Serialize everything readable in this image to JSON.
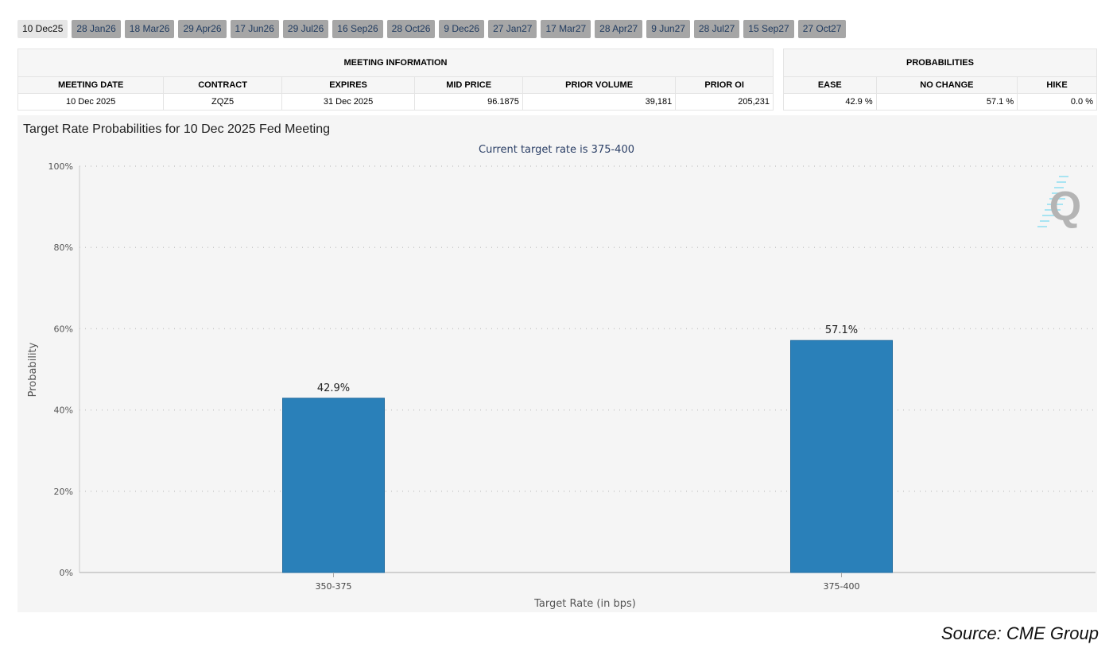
{
  "tabs": [
    "10 Dec25",
    "28 Jan26",
    "18 Mar26",
    "29 Apr26",
    "17 Jun26",
    "29 Jul26",
    "16 Sep26",
    "28 Oct26",
    "9 Dec26",
    "27 Jan27",
    "17 Mar27",
    "28 Apr27",
    "9 Jun27",
    "28 Jul27",
    "15 Sep27",
    "27 Oct27"
  ],
  "meeting_info": {
    "title": "MEETING INFORMATION",
    "headers": [
      "MEETING DATE",
      "CONTRACT",
      "EXPIRES",
      "MID PRICE",
      "PRIOR VOLUME",
      "PRIOR OI"
    ],
    "row": [
      "10 Dec 2025",
      "ZQZ5",
      "31 Dec 2025",
      "96.1875",
      "39,181",
      "205,231"
    ]
  },
  "probabilities": {
    "title": "PROBABILITIES",
    "headers": [
      "EASE",
      "NO CHANGE",
      "HIKE"
    ],
    "row": [
      "42.9 %",
      "57.1 %",
      "0.0 %"
    ]
  },
  "chart_data": {
    "type": "bar",
    "title": "Target Rate Probabilities for 10 Dec 2025 Fed Meeting",
    "subtitle": "Current target rate is 375-400",
    "categories": [
      "350-375",
      "375-400"
    ],
    "values": [
      42.9,
      57.1
    ],
    "data_labels": [
      "42.9%",
      "57.1%"
    ],
    "xlabel": "Target Rate (in bps)",
    "ylabel": "Probability",
    "ylim": [
      0,
      100
    ],
    "yticks": [
      "0%",
      "20%",
      "40%",
      "60%",
      "80%",
      "100%"
    ],
    "grid": true,
    "bar_color": "#2a80b9"
  },
  "source": "Source: CME Group"
}
